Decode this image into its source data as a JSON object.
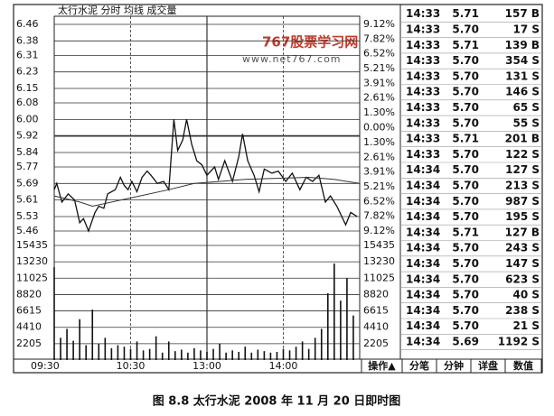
{
  "chart_data": [
    {
      "type": "line",
      "title": "太行水泥 分时 均线 成交量",
      "xlim": [
        0,
        240
      ],
      "xticks": [
        {
          "value": 0,
          "label": "09:30"
        },
        {
          "value": 60,
          "label": "10:30"
        },
        {
          "value": 120,
          "label": "13:00"
        },
        {
          "value": 180,
          "label": "14:00"
        }
      ],
      "ylim": [
        5.46,
        6.46
      ],
      "yticks": [
        6.46,
        6.38,
        6.31,
        6.23,
        6.15,
        6.08,
        {
          "value": 6,
          "label": "6.00"
        },
        5.92,
        5.84,
        5.77,
        5.69,
        5.61,
        5.53,
        5.46
      ],
      "y2lim": [
        -9.12,
        9.12
      ],
      "y2ticks": [
        {
          "value": 9.12,
          "label": "9.12%"
        },
        {
          "value": 7.82,
          "label": "7.82%"
        },
        {
          "value": 6.52,
          "label": "6.52%"
        },
        {
          "value": 5.21,
          "label": "5.21%"
        },
        {
          "value": 3.91,
          "label": "3.91%"
        },
        {
          "value": 2.61,
          "label": "2.61%"
        },
        {
          "value": 1.3,
          "label": "1.30%"
        },
        {
          "value": 0,
          "label": "0.00%"
        },
        {
          "value": -1.3,
          "label": "1.30%"
        },
        {
          "value": -2.61,
          "label": "2.61%"
        },
        {
          "value": -3.91,
          "label": "3.91%"
        },
        {
          "value": -5.21,
          "label": "5.21%"
        },
        {
          "value": -6.52,
          "label": "6.52%"
        },
        {
          "value": -7.82,
          "label": "7.82%"
        },
        {
          "value": -9.12,
          "label": "9.12%"
        }
      ],
      "grid": true,
      "series": [
        {
          "name": "分时",
          "color": "#111111",
          "x": [
            0,
            2,
            6,
            11,
            16,
            20,
            23,
            27,
            32,
            35,
            39,
            42,
            48,
            52,
            55,
            58,
            61,
            65,
            69,
            73,
            76,
            81,
            86,
            90,
            94,
            97,
            101,
            104,
            108,
            112,
            116,
            120,
            126,
            129,
            134,
            140,
            145,
            148,
            152,
            157,
            161,
            165,
            171,
            176,
            182,
            187,
            193,
            198,
            203,
            208,
            213,
            217,
            222,
            229,
            233,
            238
          ],
          "values": [
            5.66,
            5.69,
            5.6,
            5.64,
            5.61,
            5.5,
            5.52,
            5.46,
            5.55,
            5.58,
            5.57,
            5.64,
            5.66,
            5.72,
            5.68,
            5.66,
            5.7,
            5.65,
            5.72,
            5.75,
            5.73,
            5.69,
            5.7,
            5.66,
            6.0,
            5.85,
            5.9,
            6.0,
            5.88,
            5.8,
            5.78,
            5.73,
            5.77,
            5.71,
            5.8,
            5.7,
            5.82,
            5.93,
            5.8,
            5.73,
            5.65,
            5.76,
            5.74,
            5.75,
            5.7,
            5.74,
            5.66,
            5.72,
            5.7,
            5.73,
            5.6,
            5.63,
            5.58,
            5.49,
            5.55,
            5.53
          ]
        },
        {
          "name": "均线",
          "color": "#333333",
          "x": [
            0,
            20,
            30,
            60,
            90,
            110,
            150,
            200,
            220,
            240
          ],
          "values": [
            5.63,
            5.6,
            5.58,
            5.62,
            5.66,
            5.69,
            5.71,
            5.72,
            5.71,
            5.69
          ]
        }
      ]
    },
    {
      "type": "bar",
      "color": "#111111",
      "xlim": [
        0,
        240
      ],
      "ylim": [
        0,
        15435
      ],
      "yticks": [
        15435,
        13230,
        11025,
        8820,
        6615,
        4410,
        2205
      ],
      "x": [
        0,
        5,
        10,
        15,
        20,
        25,
        30,
        35,
        40,
        45,
        50,
        55,
        60,
        65,
        70,
        75,
        80,
        85,
        90,
        95,
        100,
        105,
        110,
        115,
        120,
        125,
        130,
        135,
        140,
        145,
        150,
        155,
        160,
        165,
        170,
        175,
        180,
        185,
        190,
        195,
        200,
        205,
        210,
        215,
        220,
        225,
        230,
        235
      ],
      "values": [
        12500,
        3000,
        4200,
        2600,
        5500,
        2000,
        6800,
        2200,
        3000,
        1600,
        2000,
        1800,
        1500,
        2500,
        1300,
        1500,
        3200,
        1000,
        2500,
        1200,
        1400,
        1000,
        1600,
        1300,
        1100,
        1500,
        2200,
        1000,
        1300,
        1100,
        1800,
        1000,
        1400,
        1200,
        1000,
        1100,
        1500,
        1300,
        1800,
        2500,
        1500,
        3000,
        4200,
        9000,
        13000,
        8000,
        11000,
        6000
      ]
    }
  ],
  "watermark": {
    "brand": "767股票学习网",
    "url": "www.net767.com"
  },
  "trades": [
    [
      "14:33",
      "5.71",
      "157 B"
    ],
    [
      "14:33",
      "5.70",
      "17 S"
    ],
    [
      "14:33",
      "5.71",
      "139 B"
    ],
    [
      "14:33",
      "5.70",
      "354 S"
    ],
    [
      "14:33",
      "5.70",
      "131 S"
    ],
    [
      "14:33",
      "5.70",
      "146 S"
    ],
    [
      "14:33",
      "5.70",
      "65 S"
    ],
    [
      "14:33",
      "5.70",
      "55 S"
    ],
    [
      "14:33",
      "5.71",
      "201 B"
    ],
    [
      "14:33",
      "5.70",
      "122 S"
    ],
    [
      "14:34",
      "5.70",
      "127 S"
    ],
    [
      "14:34",
      "5.70",
      "213 S"
    ],
    [
      "14:34",
      "5.70",
      "987 S"
    ],
    [
      "14:34",
      "5.70",
      "195 S"
    ],
    [
      "14:34",
      "5.71",
      "127 B"
    ],
    [
      "14:34",
      "5.70",
      "243 S"
    ],
    [
      "14:34",
      "5.70",
      "147 S"
    ],
    [
      "14:34",
      "5.70",
      "623 S"
    ],
    [
      "14:34",
      "5.70",
      "40 S"
    ],
    [
      "14:34",
      "5.70",
      "238 S"
    ],
    [
      "14:34",
      "5.70",
      "21 S"
    ],
    [
      "14:34",
      "5.69",
      "1192 S"
    ]
  ],
  "tabs": [
    "操作▲",
    "分笔",
    "分钟",
    "详盘",
    "数值"
  ],
  "caption": "图 8.8   太行水泥 2008 年 11 月 20 日即时图"
}
